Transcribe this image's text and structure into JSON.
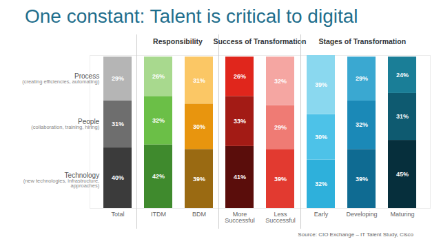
{
  "chart_data": {
    "type": "bar",
    "title": "One constant: Talent is critical to digital",
    "source": "Source: CIO Exchange – IT Talent Study, Cisco",
    "categories": [
      "Total",
      "ITDM",
      "BDM",
      "More Successful",
      "Less Successful",
      "Early",
      "Developing",
      "Maturing"
    ],
    "groups": [
      {
        "label": "Responsibility",
        "categories": [
          "ITDM",
          "BDM"
        ]
      },
      {
        "label": "Success of Transformation",
        "categories": [
          "More Successful",
          "Less Successful"
        ]
      },
      {
        "label": "Stages of Transformation",
        "categories": [
          "Early",
          "Developing",
          "Maturing"
        ]
      }
    ],
    "series": [
      {
        "name": "Technology",
        "description": "(new technologies, infrastructure, approaches)",
        "values": [
          40,
          42,
          39,
          41,
          39,
          32,
          39,
          45
        ],
        "value_labels": [
          "40%",
          "42%",
          "39%",
          "41%",
          "39%",
          "32%",
          "39%",
          "45%"
        ],
        "colors": [
          "#3b3b3b",
          "#3f8a2d",
          "#9a6a12",
          "#5a0d0b",
          "#e23a30",
          "#2eb0db",
          "#0f6b92",
          "#062f3c"
        ]
      },
      {
        "name": "People",
        "description": "(collaboration, training, hiring)",
        "values": [
          31,
          32,
          30,
          33,
          29,
          30,
          32,
          31
        ],
        "value_labels": [
          "31%",
          "32%",
          "30%",
          "33%",
          "29%",
          "30%",
          "32%",
          "31%"
        ],
        "colors": [
          "#6e6e6e",
          "#6bbf47",
          "#e8950e",
          "#a31b15",
          "#ef7b74",
          "#4dc2e8",
          "#1b89b7",
          "#0e5a70"
        ]
      },
      {
        "name": "Process",
        "description": "(creating efficiencies, automating)",
        "values": [
          29,
          26,
          31,
          26,
          32,
          39,
          29,
          24
        ],
        "value_labels": [
          "29%",
          "26%",
          "31%",
          "26%",
          "32%",
          "39%",
          "29%",
          "24%"
        ],
        "colors": [
          "#b5b5b5",
          "#a8d98e",
          "#fbc765",
          "#e0261c",
          "#f5a6a2",
          "#8ad8ef",
          "#3aa8d1",
          "#1a7e97"
        ]
      }
    ],
    "stacked": true,
    "data_labels": true,
    "tick_labels": "x",
    "ylim": [
      0,
      101
    ]
  }
}
